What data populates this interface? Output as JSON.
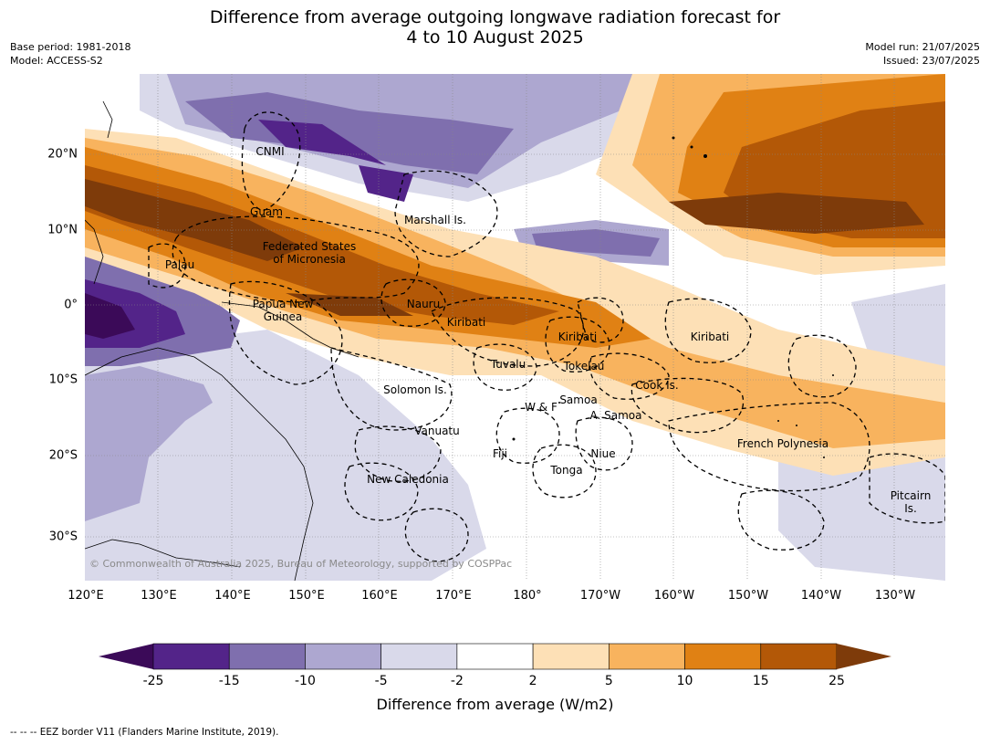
{
  "title_line1": "Difference from average outgoing longwave radiation forecast for",
  "title_line2": "4 to 10 August 2025",
  "base_period": "Base period: 1981-2018",
  "model": "Model: ACCESS-S2",
  "model_run": "Model run: 21/07/2025",
  "issued": "Issued: 23/07/2025",
  "copyright": "© Commonwealth of Australia 2025, Bureau of Meteorology, supported by COSPPac",
  "lon_labels": [
    "120°E",
    "130°E",
    "140°E",
    "150°E",
    "160°E",
    "170°E",
    "180°",
    "170°W",
    "160°W",
    "150°W",
    "140°W",
    "130°W"
  ],
  "lat_labels": [
    "20°N",
    "10°N",
    "0°",
    "10°S",
    "20°S",
    "30°S"
  ],
  "regions": [
    "CNMI",
    "Guam",
    "Marshall Is.",
    "Federated States",
    "of Micronesia",
    "Palau",
    "Papua New",
    "Guinea",
    "Nauru",
    "Kiribati",
    "Kiribati",
    "Kiribati",
    "Tuvalu",
    "Tokelau",
    "Solomon Is.",
    "Cook Is.",
    "Samoa",
    "W & F",
    "A. Samoa",
    "Vanuatu",
    "Fiji",
    "Niue",
    "Tonga",
    "New Caledonia",
    "French Polynesia",
    "Pitcairn",
    "Is."
  ],
  "legend": {
    "title": "Difference from average (W/m2)",
    "ticks": [
      "-25",
      "-15",
      "-10",
      "-5",
      "-2",
      "2",
      "5",
      "10",
      "15",
      "25"
    ],
    "colors": [
      "#3b0a58",
      "#532489",
      "#7f6fae",
      "#ada7d0",
      "#d9d9ea",
      "#ffffff",
      "#fde0b6",
      "#f8b35e",
      "#e08114",
      "#b35807",
      "#7e3b0a"
    ]
  },
  "footnote": "--  --  -- EEZ border V11 (Flanders Marine Institute, 2019)."
}
